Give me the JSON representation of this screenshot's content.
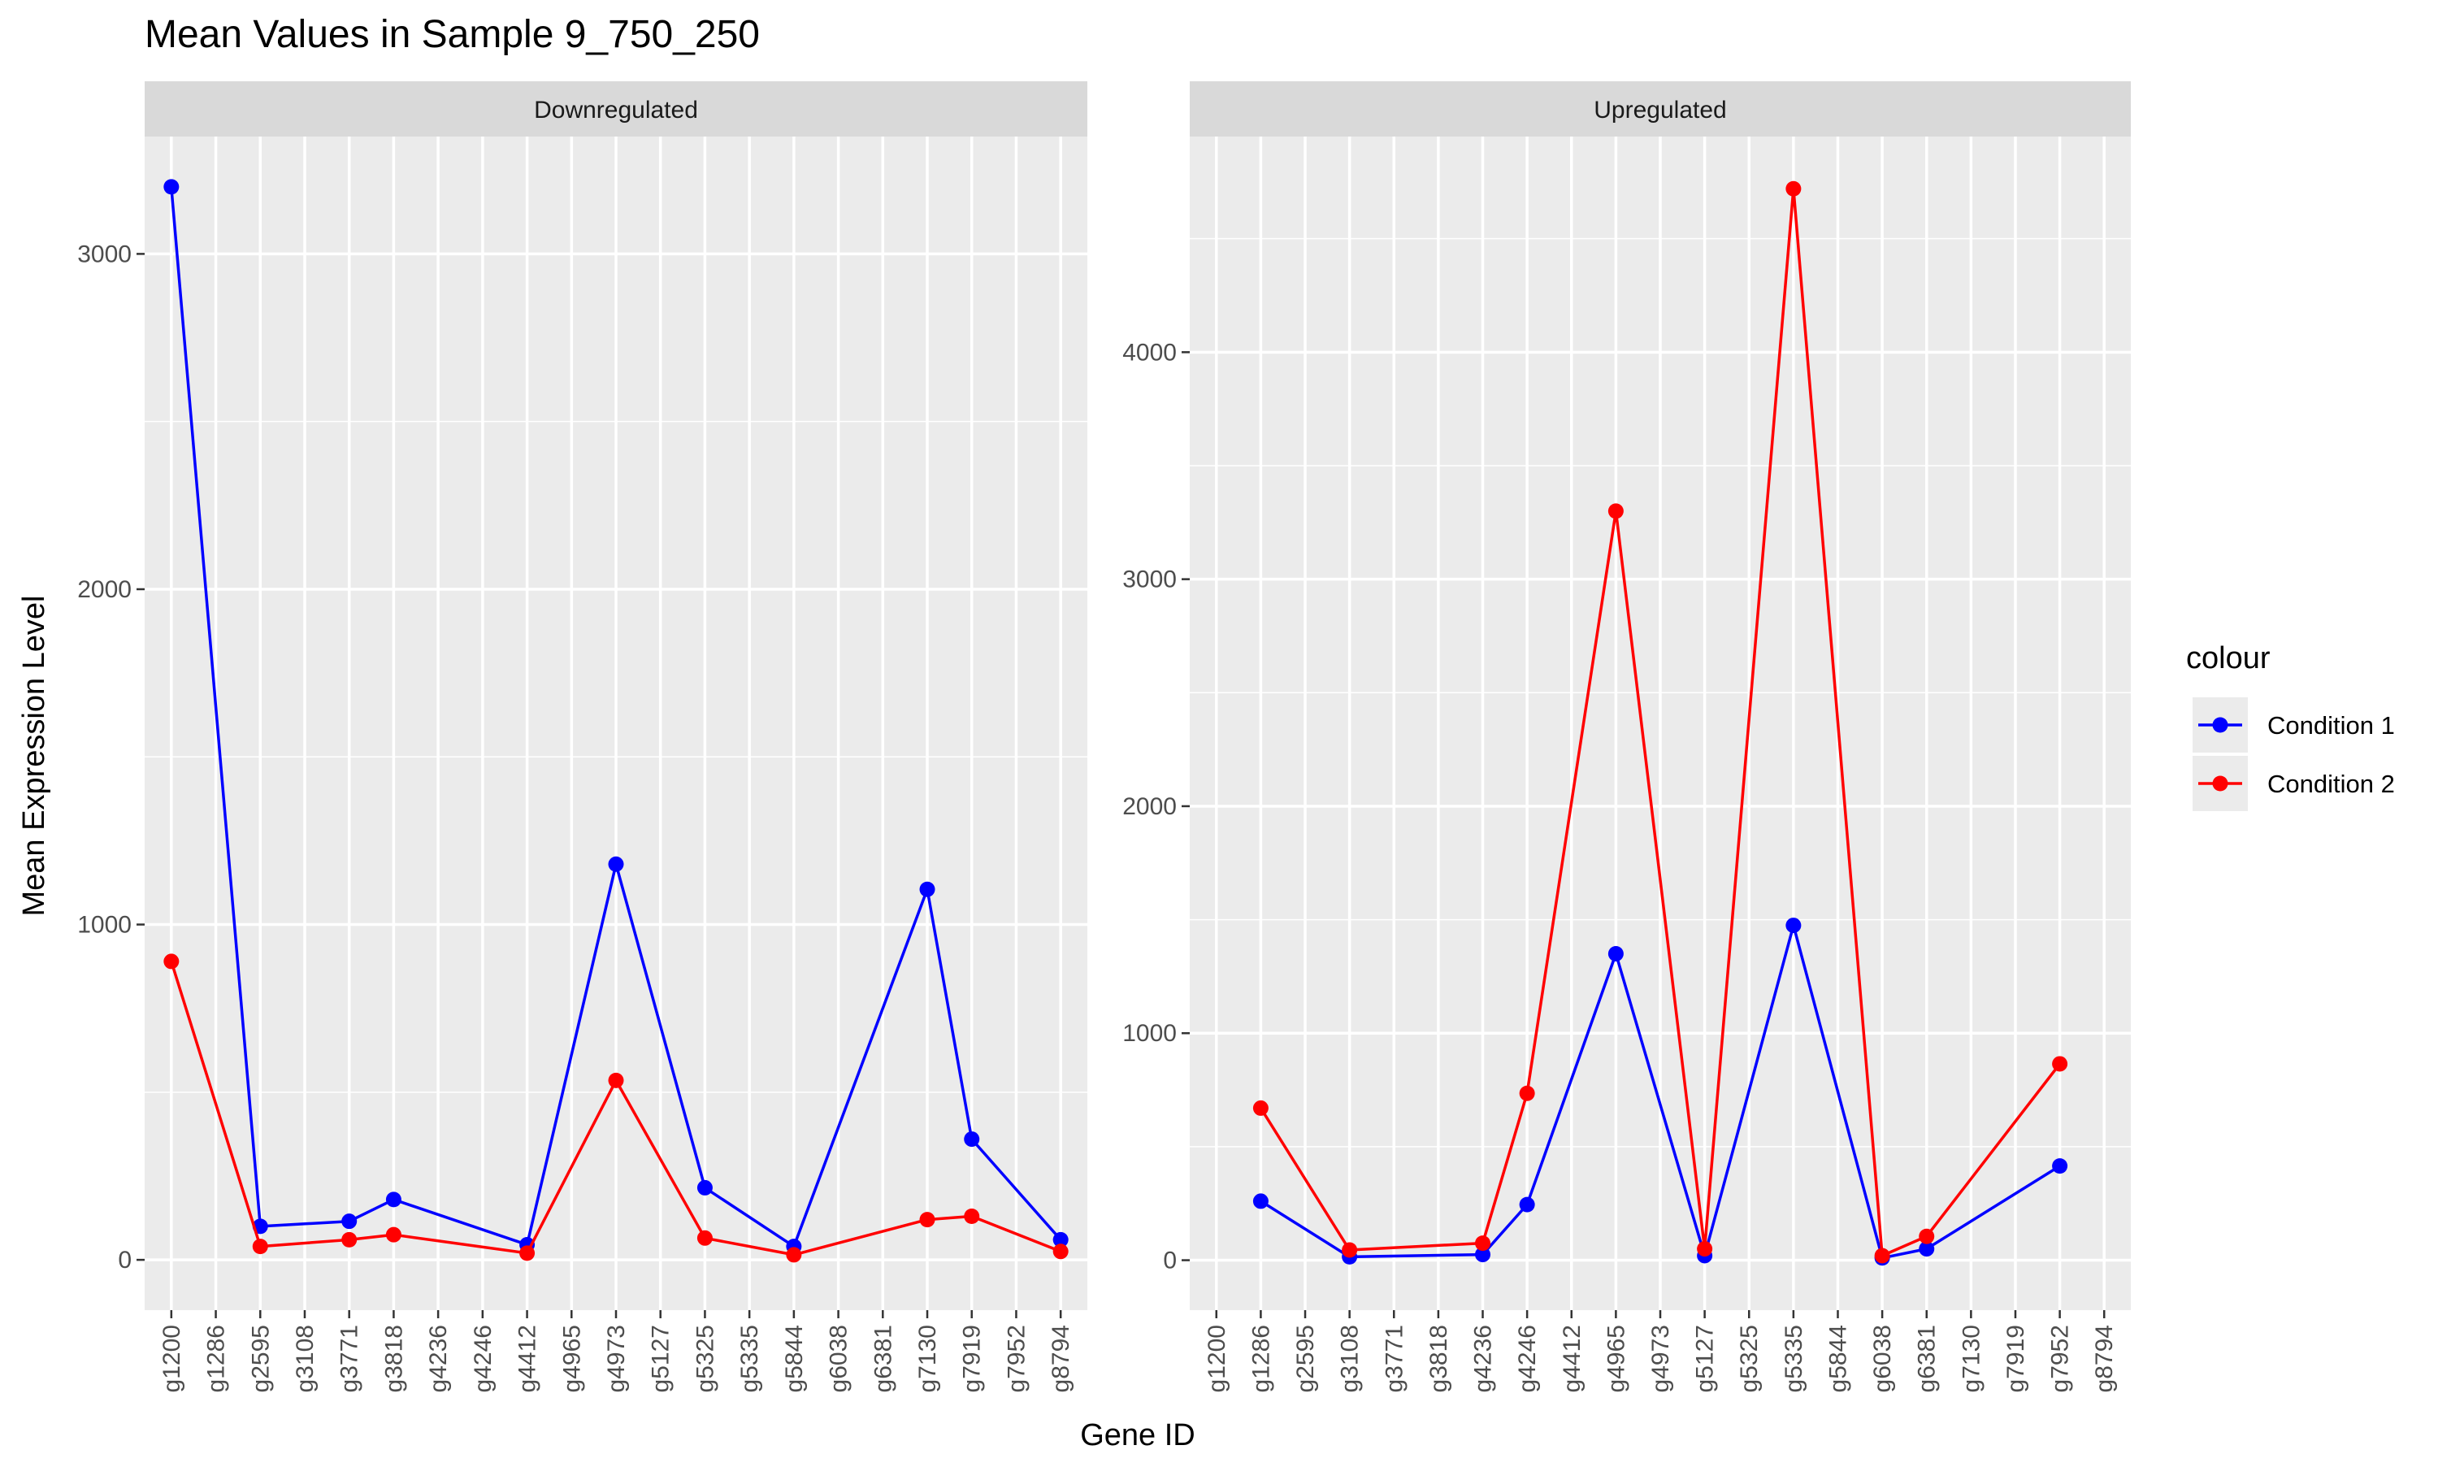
{
  "title": "Mean Values in Sample 9_750_250",
  "xlabel": "Gene ID",
  "ylabel": "Mean Expression Level",
  "legend": {
    "title": "colour",
    "position": "right",
    "entries": [
      {
        "label": "Condition 1",
        "color": "#0000ff"
      },
      {
        "label": "Condition 2",
        "color": "#ff0000"
      }
    ]
  },
  "chart_data": [
    {
      "type": "line",
      "panel": "Downregulated",
      "categories": [
        "g1200",
        "g1286",
        "g2595",
        "g3108",
        "g3771",
        "g3818",
        "g4236",
        "g4246",
        "g4412",
        "g4965",
        "g4973",
        "g5127",
        "g5325",
        "g5335",
        "g5844",
        "g6038",
        "g6381",
        "g7130",
        "g7919",
        "g7952",
        "g8794"
      ],
      "yticks": [
        0,
        1000,
        2000,
        3000
      ],
      "ylim": [
        -150,
        3350
      ],
      "grid": true,
      "series": [
        {
          "name": "Condition 1",
          "color": "#0000ff",
          "x": [
            "g1200",
            "g2595",
            "g3771",
            "g3818",
            "g4412",
            "g4973",
            "g5325",
            "g5844",
            "g7130",
            "g7919",
            "g8794"
          ],
          "values": [
            3200,
            100,
            115,
            180,
            45,
            1180,
            215,
            40,
            1105,
            360,
            60
          ]
        },
        {
          "name": "Condition 2",
          "color": "#ff0000",
          "x": [
            "g1200",
            "g2595",
            "g3771",
            "g3818",
            "g4412",
            "g4973",
            "g5325",
            "g5844",
            "g7130",
            "g7919",
            "g8794"
          ],
          "values": [
            890,
            40,
            60,
            75,
            20,
            535,
            65,
            15,
            120,
            130,
            25
          ]
        }
      ]
    },
    {
      "type": "line",
      "panel": "Upregulated",
      "categories": [
        "g1200",
        "g1286",
        "g2595",
        "g3108",
        "g3771",
        "g3818",
        "g4236",
        "g4246",
        "g4412",
        "g4965",
        "g4973",
        "g5127",
        "g5325",
        "g5335",
        "g5844",
        "g6038",
        "g6381",
        "g7130",
        "g7919",
        "g7952",
        "g8794"
      ],
      "yticks": [
        0,
        1000,
        2000,
        3000,
        4000
      ],
      "ylim": [
        -220,
        4950
      ],
      "grid": true,
      "series": [
        {
          "name": "Condition 1",
          "color": "#0000ff",
          "x": [
            "g1286",
            "g3108",
            "g4236",
            "g4246",
            "g4965",
            "g5127",
            "g5335",
            "g6038",
            "g6381",
            "g7952"
          ],
          "values": [
            260,
            15,
            25,
            245,
            1350,
            20,
            1475,
            10,
            50,
            415
          ]
        },
        {
          "name": "Condition 2",
          "color": "#ff0000",
          "x": [
            "g1286",
            "g3108",
            "g4236",
            "g4246",
            "g4965",
            "g5127",
            "g5335",
            "g6038",
            "g6381",
            "g7952"
          ],
          "values": [
            670,
            45,
            75,
            735,
            3300,
            50,
            4720,
            20,
            105,
            865
          ]
        }
      ]
    }
  ]
}
